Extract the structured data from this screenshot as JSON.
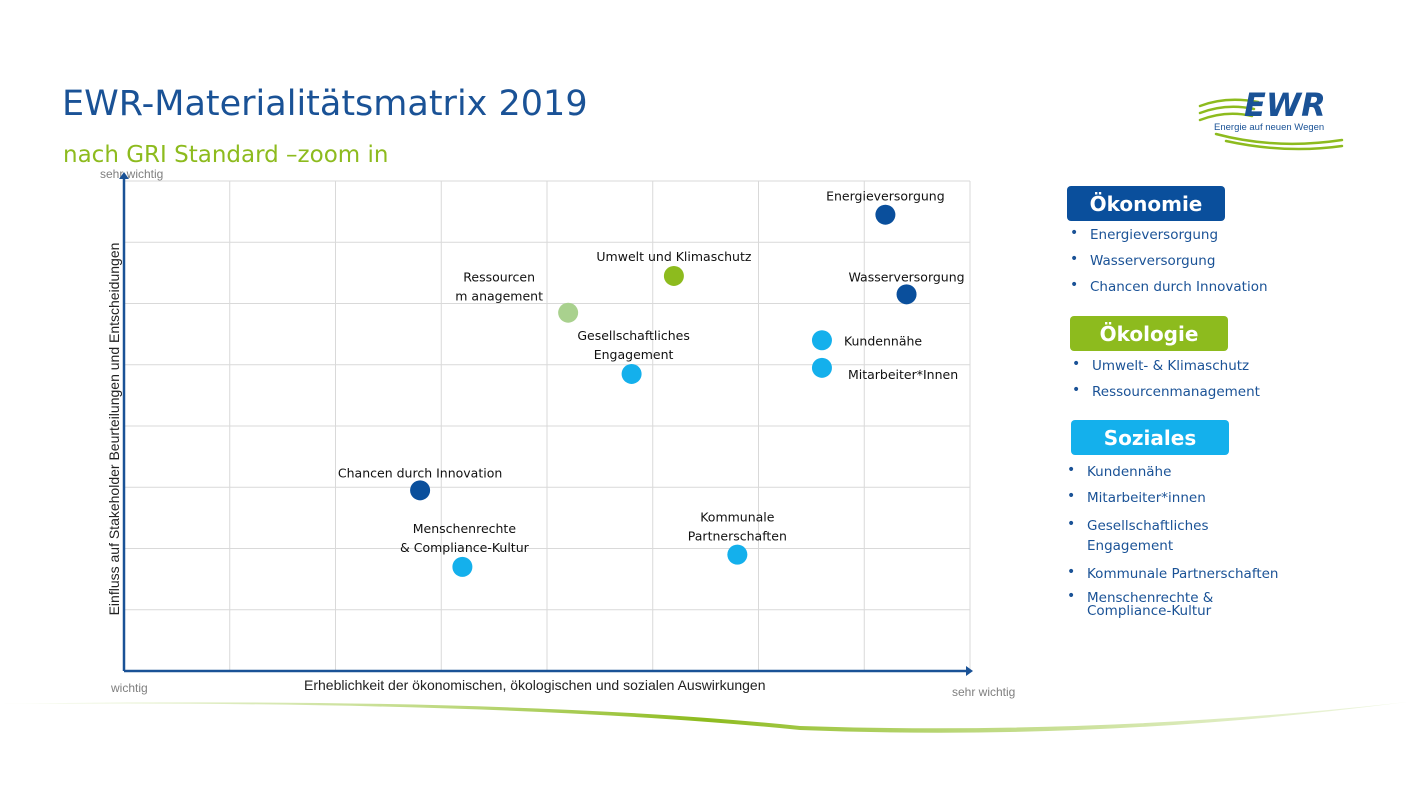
{
  "title": "EWR-Materialitätsmatrix 2019",
  "subtitle": "nach GRI Standard –zoom in",
  "logo": {
    "text": "EWR",
    "tagline": "Energie auf neuen Wegen"
  },
  "axes": {
    "y_top": "sehr wichtig",
    "x_left": "wichtig",
    "x_right": "sehr wichtig",
    "xlabel": "Erheblichkeit der ökonomischen, ökologischen und sozialen Auswirkungen",
    "ylabel": "Einfluss auf Stakeholder Beurteilungen und Entscheidungen"
  },
  "colors": {
    "oekonomie": "#0a4f9c",
    "oekologie": "#8dbb1e",
    "oekologie_light": "#a9d18e",
    "soziales": "#14b0ec",
    "title": "#1a5296",
    "subtitle": "#8dbb1e",
    "axis": "#1a5296",
    "grid": "#d9d9d9"
  },
  "chart_data": {
    "type": "scatter",
    "xlim": [
      0,
      8
    ],
    "ylim": [
      0,
      8
    ],
    "grid": true,
    "xlabel": "Erheblichkeit der ökonomischen, ökologischen und sozialen Auswirkungen",
    "ylabel": "Einfluss auf Stakeholder Beurteilungen und Entscheidungen",
    "points": [
      {
        "label": "Energieversorgung",
        "x": 7.2,
        "y": 7.45,
        "group": "oekonomie"
      },
      {
        "label": "Wasserversorgung",
        "x": 7.4,
        "y": 6.15,
        "group": "oekonomie"
      },
      {
        "label": "Umwelt und Klimaschutz",
        "x": 5.2,
        "y": 6.45,
        "group": "oekologie"
      },
      {
        "label": "Ressourcenm anagement",
        "x": 4.2,
        "y": 5.85,
        "group": "oekologie_light"
      },
      {
        "label": "Kundennähe",
        "x": 6.6,
        "y": 5.4,
        "group": "soziales"
      },
      {
        "label": "Mitarbeiter*Innen",
        "x": 6.6,
        "y": 4.95,
        "group": "soziales"
      },
      {
        "label": "Gesellschaftliches Engagement",
        "x": 4.8,
        "y": 4.85,
        "group": "soziales"
      },
      {
        "label": "Chancen durch Innovation",
        "x": 2.8,
        "y": 2.95,
        "group": "oekonomie"
      },
      {
        "label": "Kommunale Partnerschaften",
        "x": 5.8,
        "y": 1.9,
        "group": "soziales"
      },
      {
        "label": "Menschenrechte  & Compliance-Kultur",
        "x": 3.2,
        "y": 1.7,
        "group": "soziales"
      }
    ]
  },
  "legend": {
    "oekonomie": {
      "title": "Ökonomie",
      "items": [
        "Energieversorgung",
        "Wasserversorgung",
        "Chancen durch Innovation"
      ]
    },
    "oekologie": {
      "title": "Ökologie",
      "items": [
        "Umwelt- & Klimaschutz",
        "Ressourcenmanagement"
      ]
    },
    "soziales": {
      "title": "Soziales",
      "items": [
        "Kundennähe",
        "Mitarbeiter*innen",
        "Gesellschaftliches Engagement",
        "Kommunale Partnerschaften",
        "Menschenrechte & Compliance-Kultur"
      ]
    }
  }
}
